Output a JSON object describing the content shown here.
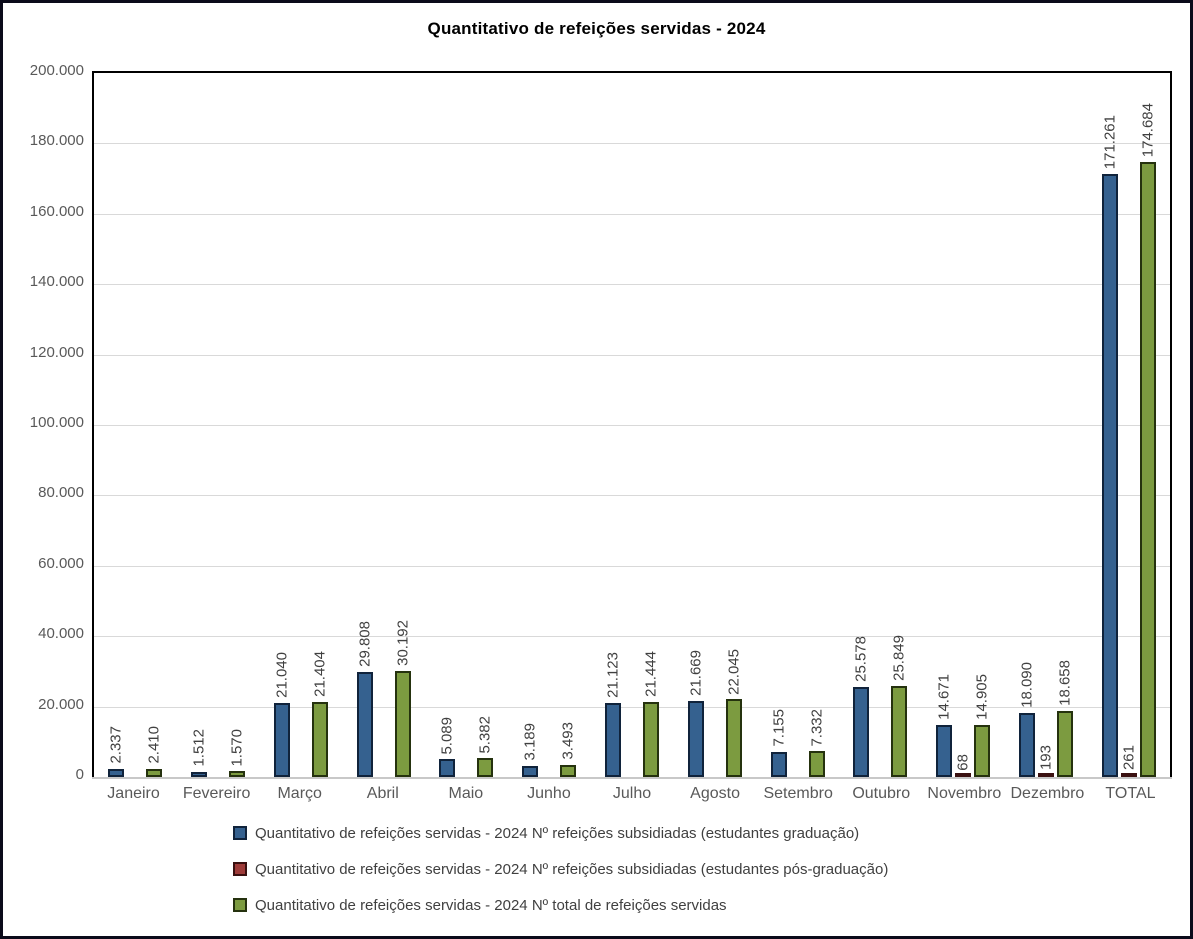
{
  "title": "Quantitativo de refeições servidas - 2024",
  "chart_data": {
    "type": "bar",
    "title": "Quantitativo de refeições servidas - 2024",
    "categories": [
      "Janeiro",
      "Fevereiro",
      "Março",
      "Abril",
      "Maio",
      "Junho",
      "Julho",
      "Agosto",
      "Setembro",
      "Outubro",
      "Novembro",
      "Dezembro",
      "TOTAL"
    ],
    "series": [
      {
        "name": "Quantitativo de refeições servidas - 2024 Nº refeições subsidiadas (estudantes graduação)",
        "color": "#35618f",
        "border_color": "#10233b",
        "values": [
          2337,
          1512,
          21040,
          29808,
          5089,
          3189,
          21123,
          21669,
          7155,
          25578,
          14671,
          18090,
          171261
        ]
      },
      {
        "name": "Quantitativo de refeições servidas - 2024 Nº refeições subsidiadas (estudantes pós-graduação)",
        "color": "#9e3b39",
        "border_color": "#3a1010",
        "values": [
          null,
          null,
          null,
          null,
          null,
          null,
          null,
          null,
          null,
          null,
          68,
          193,
          261
        ]
      },
      {
        "name": "Quantitativo de refeições servidas - 2024 Nº total de refeições servidas",
        "color": "#7c9b40",
        "border_color": "#25320e",
        "values": [
          2410,
          1570,
          21404,
          30192,
          5382,
          3493,
          21444,
          22045,
          7332,
          25849,
          14905,
          18658,
          174684
        ]
      }
    ],
    "ylim": [
      0,
      200000
    ],
    "ytick_step": 20000,
    "yticks": [
      "0",
      "20.000",
      "40.000",
      "60.000",
      "80.000",
      "100.000",
      "120.000",
      "140.000",
      "160.000",
      "180.000",
      "200.000"
    ],
    "grid": true,
    "legend_position": "bottom",
    "bar_label_rotation": 90,
    "colors": {
      "gridline": "#d9d9d9",
      "axis_line": "#c8c8c8",
      "plot_border": "#000000",
      "tick_text": "#595959",
      "data_label_text": "#404040",
      "frame_border": "#0a0a1a"
    }
  }
}
